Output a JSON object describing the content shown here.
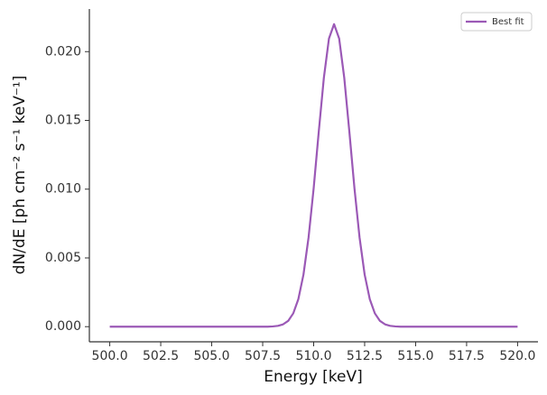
{
  "chart_data": {
    "type": "line",
    "xlabel": "Energy [keV]",
    "ylabel": "dN/dE [ph cm⁻² s⁻¹ keV⁻¹]",
    "xlim": [
      499,
      521
    ],
    "ylim": [
      -0.0011,
      0.0231
    ],
    "xticks": [
      {
        "value": 500,
        "label": "500.0"
      },
      {
        "value": 502.5,
        "label": "502.5"
      },
      {
        "value": 505,
        "label": "505.0"
      },
      {
        "value": 507.5,
        "label": "507.5"
      },
      {
        "value": 510,
        "label": "510.0"
      },
      {
        "value": 512.5,
        "label": "512.5"
      },
      {
        "value": 515,
        "label": "515.0"
      },
      {
        "value": 517.5,
        "label": "517.5"
      },
      {
        "value": 520,
        "label": "520.0"
      }
    ],
    "yticks": [
      {
        "value": 0,
        "label": "0.000"
      },
      {
        "value": 0.005,
        "label": "0.005"
      },
      {
        "value": 0.01,
        "label": "0.010"
      },
      {
        "value": 0.015,
        "label": "0.015"
      },
      {
        "value": 0.02,
        "label": "0.020"
      }
    ],
    "legend": "upper right",
    "x": [
      500,
      507.75,
      508,
      508.25,
      508.5,
      508.75,
      509,
      509.25,
      509.5,
      509.75,
      510,
      510.25,
      510.5,
      510.75,
      511,
      511.25,
      511.5,
      511.75,
      512,
      512.25,
      512.5,
      512.75,
      513,
      513.25,
      513.5,
      513.75,
      514,
      514.25,
      520
    ],
    "series": [
      {
        "name": "Best fit",
        "color": "#9b59b6",
        "values": [
          0,
          0,
          2e-05,
          6e-05,
          0.00017,
          0.00042,
          0.00097,
          0.00201,
          0.00379,
          0.00649,
          0.01007,
          0.01418,
          0.0181,
          0.02095,
          0.022,
          0.02095,
          0.0181,
          0.01418,
          0.01007,
          0.00649,
          0.00379,
          0.00201,
          0.00097,
          0.00042,
          0.00017,
          6e-05,
          2e-05,
          0,
          0
        ]
      }
    ]
  }
}
